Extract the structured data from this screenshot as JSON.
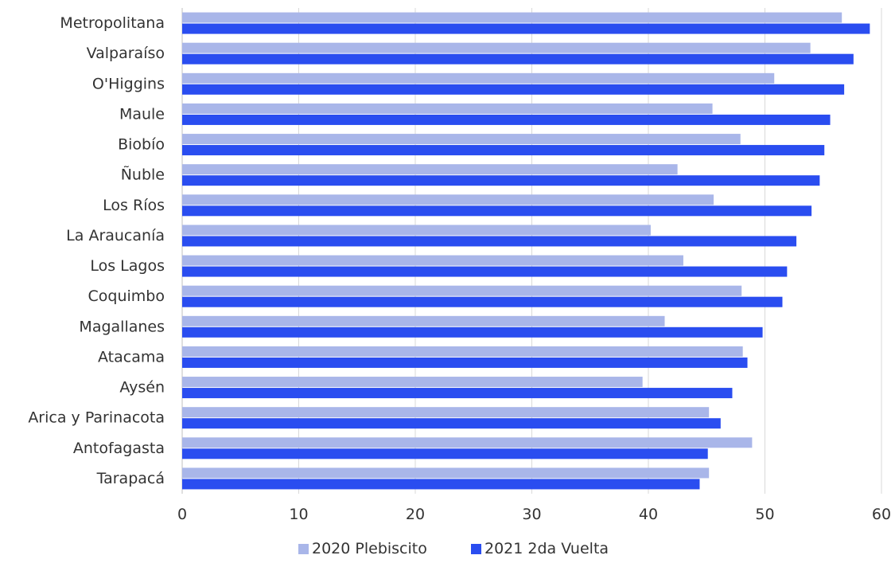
{
  "chart_data": {
    "type": "bar",
    "orientation": "horizontal",
    "categories": [
      "Metropolitana",
      "Valparaíso",
      "O'Higgins",
      "Maule",
      "Biobío",
      "Ñuble",
      "Los Ríos",
      "La Araucanía",
      "Los Lagos",
      "Coquimbo",
      "Magallanes",
      "Atacama",
      "Aysén",
      "Arica y Parinacota",
      "Antofagasta",
      "Tarapacá"
    ],
    "series": [
      {
        "name": "2020 Plebiscito",
        "color": "#a9b6e9",
        "values": [
          56.6,
          53.9,
          50.8,
          45.5,
          47.9,
          42.5,
          45.6,
          40.2,
          43.0,
          48.0,
          41.4,
          48.1,
          39.5,
          45.2,
          48.9,
          45.2
        ]
      },
      {
        "name": "2021 2da Vuelta",
        "color": "#2a4df0",
        "values": [
          59.0,
          57.6,
          56.8,
          55.6,
          55.1,
          54.7,
          54.0,
          52.7,
          51.9,
          51.5,
          49.8,
          48.5,
          47.2,
          46.2,
          45.1,
          44.4
        ]
      }
    ],
    "xlim": [
      0,
      60
    ],
    "xticks": [
      0,
      10,
      20,
      30,
      40,
      50,
      60
    ],
    "grid": true,
    "legend_position": "bottom"
  }
}
